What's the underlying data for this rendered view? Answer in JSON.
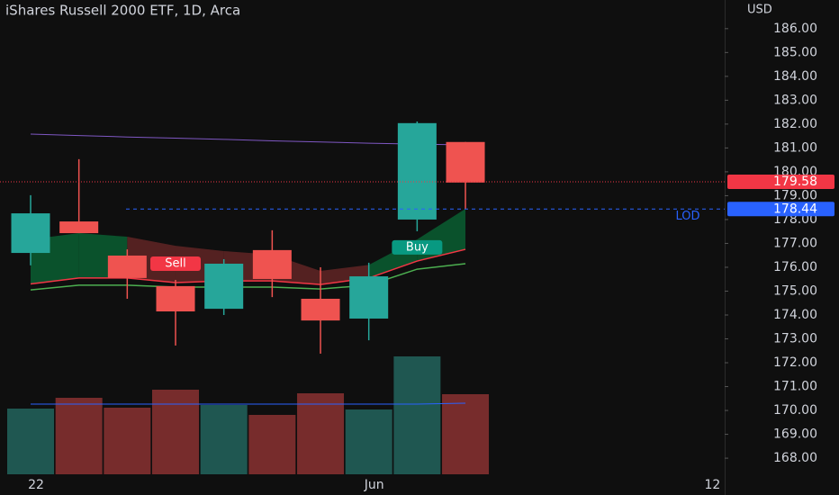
{
  "chart_data": {
    "type": "candlestick",
    "title": "iShares Russell 2000 ETF, 1D, Arca",
    "y_label": "USD",
    "open": [
      176.6,
      177.92,
      176.49,
      175.21,
      174.26,
      176.72,
      174.68,
      173.85,
      178.0,
      181.25
    ],
    "high": [
      179.02,
      180.53,
      176.75,
      175.47,
      176.34,
      177.55,
      176.0,
      176.19,
      182.11,
      181.25
    ],
    "low": [
      176.08,
      177.43,
      174.68,
      172.72,
      174.0,
      174.75,
      172.38,
      172.94,
      177.51,
      178.45
    ],
    "close": [
      178.26,
      177.43,
      175.55,
      174.15,
      176.15,
      175.51,
      173.77,
      175.62,
      182.04,
      179.55
    ],
    "up_color": "#26a69a",
    "down_color": "#ef5350",
    "volume": {
      "values": [
        73,
        85,
        74,
        94,
        77,
        66,
        90,
        72,
        131,
        89
      ],
      "vlim": [
        0,
        527
      ],
      "up_color": "#1f5751",
      "down_color": "#772c2c",
      "ma": [
        78,
        78,
        78,
        78,
        78,
        78,
        78,
        78,
        78,
        79
      ],
      "ma_color": "#2962ff"
    },
    "ylim": [
      167.4,
      187.2
    ],
    "yticks": [
      {
        "value": 168,
        "label": "168.00"
      },
      {
        "value": 169,
        "label": "169.00"
      },
      {
        "value": 170,
        "label": "170.00"
      },
      {
        "value": 171,
        "label": "171.00"
      },
      {
        "value": 172,
        "label": "172.00"
      },
      {
        "value": 173,
        "label": "173.00"
      },
      {
        "value": 174,
        "label": "174.00"
      },
      {
        "value": 175,
        "label": "175.00"
      },
      {
        "value": 176,
        "label": "176.00"
      },
      {
        "value": 177,
        "label": "177.00"
      },
      {
        "value": 178,
        "label": "178.00"
      },
      {
        "value": 179,
        "label": "179.00"
      },
      {
        "value": 180,
        "label": "180.00"
      },
      {
        "value": 181,
        "label": "181.00"
      },
      {
        "value": 182,
        "label": "182.00"
      },
      {
        "value": 183,
        "label": "183.00"
      },
      {
        "value": 184,
        "label": "184.00"
      },
      {
        "value": 185,
        "label": "185.00"
      },
      {
        "value": 186,
        "label": "186.00"
      }
    ],
    "xticks": [
      {
        "value": 0,
        "label": "22"
      },
      {
        "value": 7,
        "label": "Jun"
      },
      {
        "value": 14,
        "label": "12"
      }
    ],
    "lines": [
      {
        "color": "#7e57c2",
        "values": [
          181.58,
          181.52,
          181.46,
          181.41,
          181.36,
          181.3,
          181.25,
          181.2,
          181.16,
          181.13
        ]
      },
      {
        "color": "#f23645",
        "values": [
          175.3,
          175.55,
          175.55,
          175.36,
          175.43,
          175.43,
          175.28,
          175.55,
          176.26,
          176.75
        ]
      },
      {
        "color": "#4caf50",
        "values": [
          175.05,
          175.25,
          175.25,
          175.17,
          175.17,
          175.17,
          175.09,
          175.25,
          175.92,
          176.15
        ]
      }
    ],
    "cloud": {
      "upper": [
        177.17,
        177.43,
        177.28,
        176.9,
        176.68,
        176.53,
        175.85,
        176.1,
        177.17,
        178.45
      ],
      "colors": [
        "#0a5a30",
        "#0a5a30",
        "#5c2424",
        "#5c2424",
        "#5c2424",
        "#5c2424",
        "#5c2424",
        "#0a5a30",
        "#0a5a30"
      ]
    },
    "price_lines": [
      {
        "value": 179.58,
        "color": "#f23645",
        "style": "dotted"
      },
      {
        "value": 178.44,
        "color": "#2962ff",
        "style": "dashed",
        "name": "LOD"
      }
    ],
    "signals": [
      {
        "index": 3,
        "text": "Sell",
        "color": "#f23645",
        "position": "above"
      },
      {
        "index": 8,
        "text": "Buy",
        "color": "#089981",
        "position": "below"
      }
    ]
  }
}
